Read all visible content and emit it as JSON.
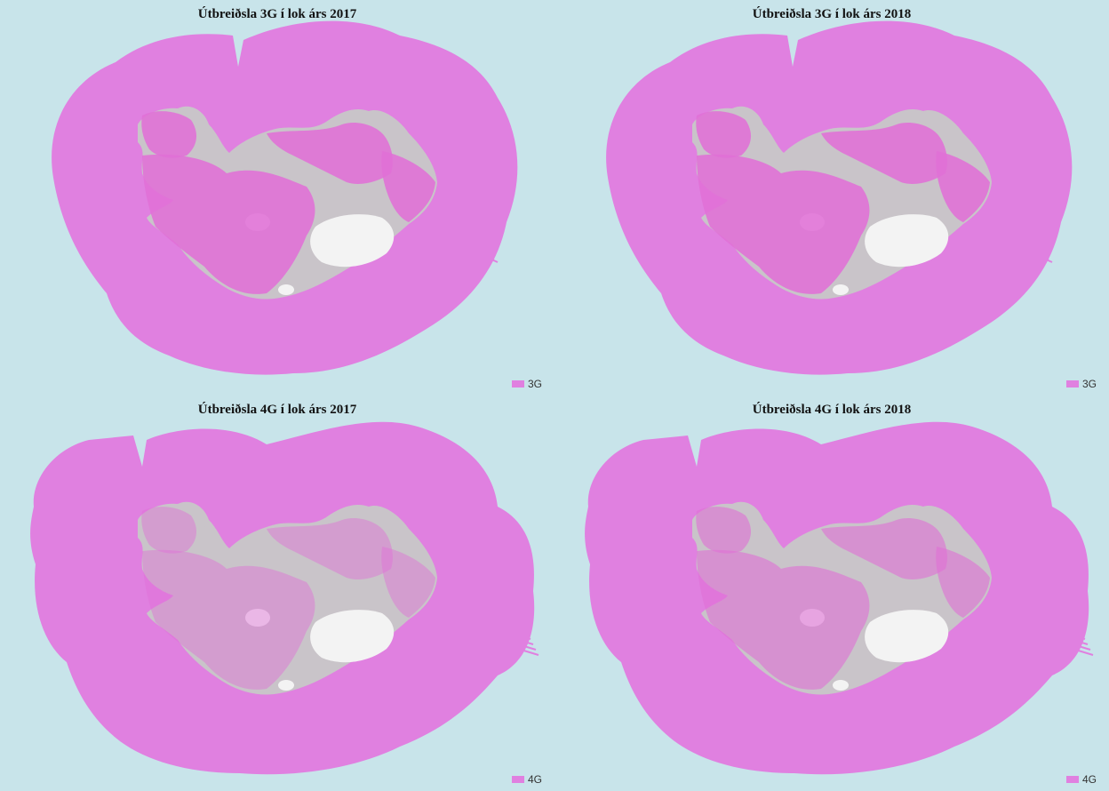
{
  "colors": {
    "coverage": "#e080e0",
    "land": "#c9c4c9",
    "glacier": "#f3f3f3",
    "sea": "#c8e4ea",
    "overlay": "#e06fd6"
  },
  "panels": [
    {
      "title": "Útbreiðsla 3G í lok árs 2017",
      "legend_label": "3G",
      "network": "3G",
      "year": "2017",
      "inland_coverage": "high"
    },
    {
      "title": "Útbreiðsla 3G í lok árs 2018",
      "legend_label": "3G",
      "network": "3G",
      "year": "2018",
      "inland_coverage": "high"
    },
    {
      "title": "Útbreiðsla 4G í lok árs 2017",
      "legend_label": "4G",
      "network": "4G",
      "year": "2017",
      "inland_coverage": "low"
    },
    {
      "title": "Útbreiðsla 4G í lok árs 2018",
      "legend_label": "4G",
      "network": "4G",
      "year": "2018",
      "inland_coverage": "medium"
    }
  ]
}
